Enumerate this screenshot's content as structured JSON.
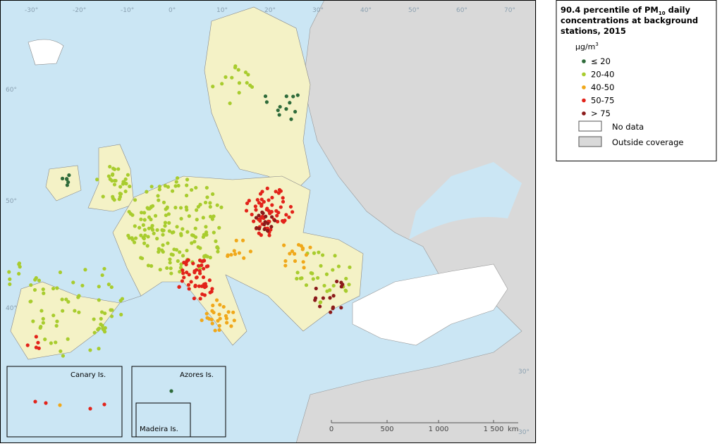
{
  "legend": {
    "title_parts": [
      "90.4 percentile of PM",
      "10",
      " daily concentrations at background stations, 2015"
    ],
    "unit_parts": [
      "µg/m",
      "3"
    ],
    "classes": [
      {
        "label": "≤ 20",
        "color": "#2e6b3a"
      },
      {
        "label": "20-40",
        "color": "#a8cc2e"
      },
      {
        "label": "40-50",
        "color": "#f0a81a"
      },
      {
        "label": "50-75",
        "color": "#e2231a"
      },
      {
        "label": "> 75",
        "color": "#8b1a1a"
      }
    ],
    "areas": [
      {
        "label": "No data",
        "color": "#ffffff"
      },
      {
        "label": "Outside coverage",
        "color": "#d9d9d9"
      }
    ]
  },
  "insets": [
    "Canary Is.",
    "Azores Is.",
    "Madeira Is."
  ],
  "scale": {
    "ticks": [
      "0",
      "500",
      "1 000",
      "1 500"
    ],
    "unit": "km"
  },
  "graticule": {
    "top": [
      "-30°",
      "-20°",
      "-10°",
      "0°",
      "10°",
      "20°",
      "30°",
      "40°",
      "50°",
      "60°",
      "70°"
    ],
    "left": [
      "60°",
      "50°",
      "40°"
    ],
    "right": [
      "30°",
      "30°"
    ]
  }
}
